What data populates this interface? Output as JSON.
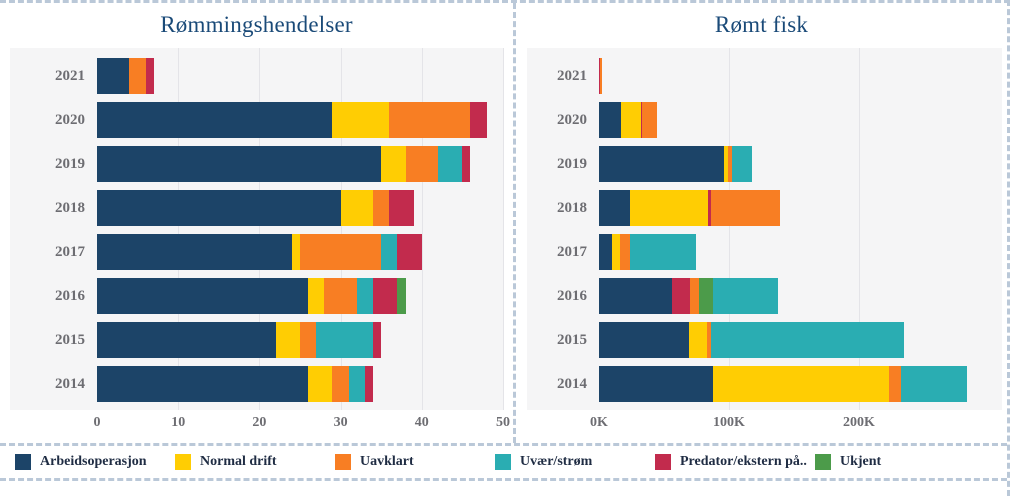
{
  "legend": [
    {
      "key": "arbeidsoperasjon",
      "label": "Arbeidsoperasjon",
      "color": "#1c4468"
    },
    {
      "key": "normal_drift",
      "label": "Normal drift",
      "color": "#ffcd03"
    },
    {
      "key": "uavklart",
      "label": "Uavklart",
      "color": "#f87e23"
    },
    {
      "key": "uvaer_strom",
      "label": "Uvær/strøm",
      "color": "#2aadb2"
    },
    {
      "key": "predator",
      "label": "Predator/ekstern på..",
      "color": "#c22b4d"
    },
    {
      "key": "ukjent",
      "label": "Ukjent",
      "color": "#4c9b4a"
    }
  ],
  "chart_data": [
    {
      "type": "bar",
      "orientation": "horizontal",
      "stacked": true,
      "title": "Rømmingshendelser",
      "xlabel": "",
      "ylabel": "",
      "xlim": [
        0,
        50
      ],
      "grid": true,
      "x_ticks": [
        {
          "value": 0,
          "label": "0"
        },
        {
          "value": 10,
          "label": "10"
        },
        {
          "value": 20,
          "label": "20"
        },
        {
          "value": 30,
          "label": "30"
        },
        {
          "value": 40,
          "label": "40"
        },
        {
          "value": 50,
          "label": "50"
        }
      ],
      "categories": [
        "2021",
        "2020",
        "2019",
        "2018",
        "2017",
        "2016",
        "2015",
        "2014"
      ],
      "rows": [
        {
          "year": "2021",
          "segments": [
            [
              "arbeidsoperasjon",
              4
            ],
            [
              "uavklart",
              2
            ],
            [
              "predator",
              1
            ]
          ]
        },
        {
          "year": "2020",
          "segments": [
            [
              "arbeidsoperasjon",
              29
            ],
            [
              "normal_drift",
              7
            ],
            [
              "uavklart",
              10
            ],
            [
              "predator",
              2
            ]
          ]
        },
        {
          "year": "2019",
          "segments": [
            [
              "arbeidsoperasjon",
              35
            ],
            [
              "normal_drift",
              3
            ],
            [
              "uavklart",
              4
            ],
            [
              "uvaer_strom",
              3
            ],
            [
              "predator",
              1
            ]
          ]
        },
        {
          "year": "2018",
          "segments": [
            [
              "arbeidsoperasjon",
              30
            ],
            [
              "normal_drift",
              4
            ],
            [
              "uavklart",
              2
            ],
            [
              "predator",
              3
            ]
          ]
        },
        {
          "year": "2017",
          "segments": [
            [
              "arbeidsoperasjon",
              24
            ],
            [
              "normal_drift",
              1
            ],
            [
              "uavklart",
              10
            ],
            [
              "uvaer_strom",
              2
            ],
            [
              "predator",
              3
            ]
          ]
        },
        {
          "year": "2016",
          "segments": [
            [
              "arbeidsoperasjon",
              26
            ],
            [
              "normal_drift",
              2
            ],
            [
              "uavklart",
              4
            ],
            [
              "uvaer_strom",
              2
            ],
            [
              "predator",
              3
            ],
            [
              "ukjent",
              1
            ]
          ]
        },
        {
          "year": "2015",
          "segments": [
            [
              "arbeidsoperasjon",
              22
            ],
            [
              "normal_drift",
              3
            ],
            [
              "uavklart",
              2
            ],
            [
              "uvaer_strom",
              7
            ],
            [
              "predator",
              1
            ]
          ]
        },
        {
          "year": "2014",
          "segments": [
            [
              "arbeidsoperasjon",
              26
            ],
            [
              "normal_drift",
              3
            ],
            [
              "uavklart",
              2
            ],
            [
              "uvaer_strom",
              2
            ],
            [
              "predator",
              1
            ]
          ]
        }
      ]
    },
    {
      "type": "bar",
      "orientation": "horizontal",
      "stacked": true,
      "title": "Rømt fisk",
      "xlabel": "",
      "ylabel": "",
      "xlim": [
        0,
        310000
      ],
      "grid": true,
      "x_ticks": [
        {
          "value": 0,
          "label": "0K"
        },
        {
          "value": 100000,
          "label": "100K"
        },
        {
          "value": 200000,
          "label": "200K"
        }
      ],
      "categories": [
        "2021",
        "2020",
        "2019",
        "2018",
        "2017",
        "2016",
        "2015",
        "2014"
      ],
      "rows": [
        {
          "year": "2021",
          "segments": [
            [
              "predator",
              1000
            ],
            [
              "uavklart",
              1000
            ]
          ]
        },
        {
          "year": "2020",
          "segments": [
            [
              "arbeidsoperasjon",
              17000
            ],
            [
              "normal_drift",
              15000
            ],
            [
              "predator",
              1000
            ],
            [
              "uavklart",
              12000
            ]
          ]
        },
        {
          "year": "2019",
          "segments": [
            [
              "arbeidsoperasjon",
              96000
            ],
            [
              "normal_drift",
              3000
            ],
            [
              "uavklart",
              3000
            ],
            [
              "uvaer_strom",
              16000
            ]
          ]
        },
        {
          "year": "2018",
          "segments": [
            [
              "arbeidsoperasjon",
              24000
            ],
            [
              "normal_drift",
              60000
            ],
            [
              "predator",
              2000
            ],
            [
              "uavklart",
              53000
            ]
          ]
        },
        {
          "year": "2017",
          "segments": [
            [
              "arbeidsoperasjon",
              10000
            ],
            [
              "normal_drift",
              6000
            ],
            [
              "uavklart",
              8000
            ],
            [
              "uvaer_strom",
              51000
            ]
          ]
        },
        {
          "year": "2016",
          "segments": [
            [
              "arbeidsoperasjon",
              56000
            ],
            [
              "predator",
              14000
            ],
            [
              "uavklart",
              7000
            ],
            [
              "ukjent",
              11000
            ],
            [
              "uvaer_strom",
              50000
            ]
          ]
        },
        {
          "year": "2015",
          "segments": [
            [
              "arbeidsoperasjon",
              69000
            ],
            [
              "normal_drift",
              14000
            ],
            [
              "uavklart",
              3000
            ],
            [
              "uvaer_strom",
              149000
            ]
          ]
        },
        {
          "year": "2014",
          "segments": [
            [
              "arbeidsoperasjon",
              88000
            ],
            [
              "normal_drift",
              135000
            ],
            [
              "uavklart",
              9000
            ],
            [
              "uvaer_strom",
              51000
            ]
          ]
        }
      ]
    }
  ]
}
